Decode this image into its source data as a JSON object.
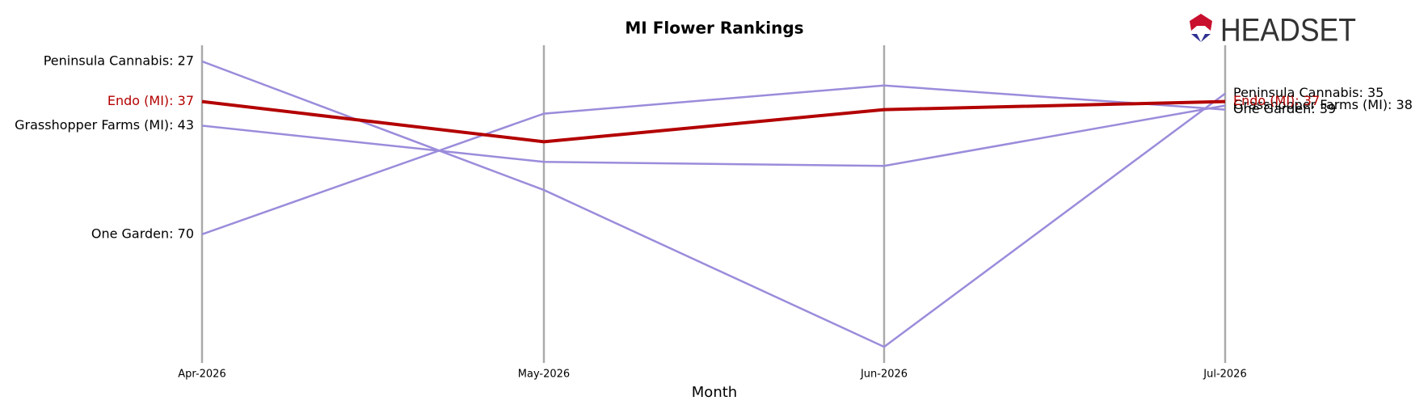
{
  "chart_data": {
    "type": "line",
    "title": "MI Flower Rankings",
    "x_label": "Month",
    "logo": "HEADSET",
    "categories": [
      "Apr-2026",
      "May-2026",
      "Jun-2026",
      "Jul-2026"
    ],
    "ylim": [
      23,
      102
    ],
    "y_inverted": true,
    "series": [
      {
        "name": "Peninsula Cannabis",
        "color": "#9b8cdb",
        "values": [
          27,
          59,
          98,
          35
        ],
        "value_labels": [
          "Peninsula Cannabis: 27",
          null,
          null,
          "Peninsula Cannabis: 35"
        ]
      },
      {
        "name": "One Garden",
        "color": "#9b8cdb",
        "values": [
          70,
          40,
          33,
          39
        ],
        "value_labels": [
          "One Garden: 70",
          null,
          null,
          "One Garden: 39"
        ]
      },
      {
        "name": "Grasshopper Farms (MI)",
        "color": "#9b8cdb",
        "values": [
          43,
          52,
          53,
          38
        ],
        "value_labels": [
          "Grasshopper Farms (MI): 43",
          null,
          null,
          "Grasshopper Farms (MI): 38"
        ]
      },
      {
        "name": "Endo (MI)",
        "color": "#b30000",
        "values": [
          37,
          47,
          39,
          37
        ],
        "value_labels": [
          "Endo (MI): 37",
          null,
          null,
          "Endo (MI): 37"
        ]
      }
    ]
  }
}
